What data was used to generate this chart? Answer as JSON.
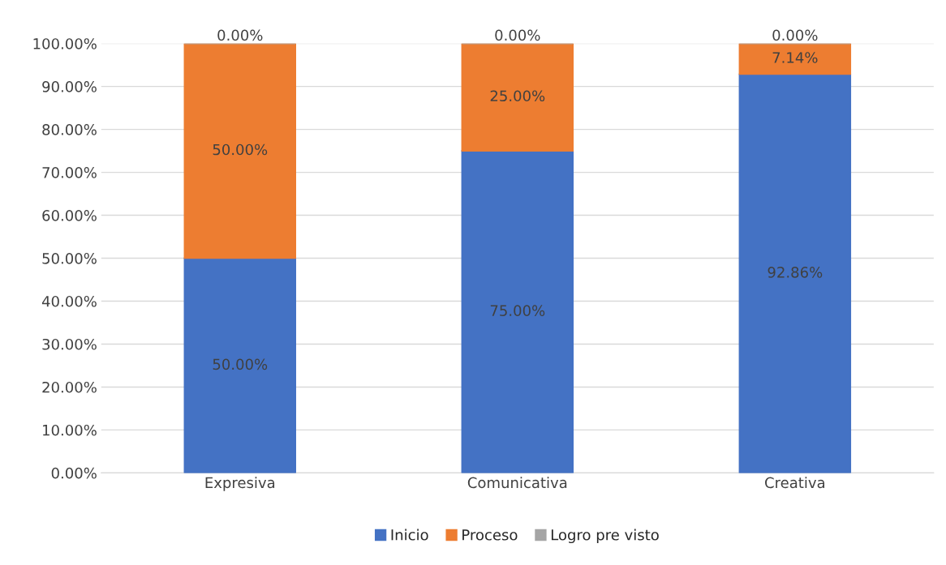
{
  "chart_data": {
    "type": "bar",
    "stacked": true,
    "categories": [
      "Expresiva",
      "Comunicativa",
      "Creativa"
    ],
    "series": [
      {
        "name": "Inicio",
        "color": "#4472c4",
        "values": [
          50.0,
          75.0,
          92.86
        ],
        "value_labels": [
          "50.00%",
          "75.00%",
          "92.86%"
        ]
      },
      {
        "name": "Proceso",
        "color": "#ed7d31",
        "values": [
          50.0,
          25.0,
          7.14
        ],
        "value_labels": [
          "50.00%",
          "25.00%",
          "7.14%"
        ]
      },
      {
        "name": "Logro pre visto",
        "color": "#a5a5a5",
        "values": [
          0.0,
          0.0,
          0.0
        ],
        "value_labels": [
          "0.00%",
          "0.00%",
          "0.00%"
        ]
      }
    ],
    "ylim": [
      0,
      100
    ],
    "yticks": [
      {
        "value": 0,
        "label": "0.00%"
      },
      {
        "value": 10,
        "label": "10.00%"
      },
      {
        "value": 20,
        "label": "20.00%"
      },
      {
        "value": 30,
        "label": "30.00%"
      },
      {
        "value": 40,
        "label": "40.00%"
      },
      {
        "value": 50,
        "label": "50.00%"
      },
      {
        "value": 60,
        "label": "60.00%"
      },
      {
        "value": 70,
        "label": "70.00%"
      },
      {
        "value": 80,
        "label": "80.00%"
      },
      {
        "value": 90,
        "label": "90.00%"
      },
      {
        "value": 100,
        "label": "100.00%"
      }
    ],
    "grid": "y",
    "legend": "bottom"
  }
}
